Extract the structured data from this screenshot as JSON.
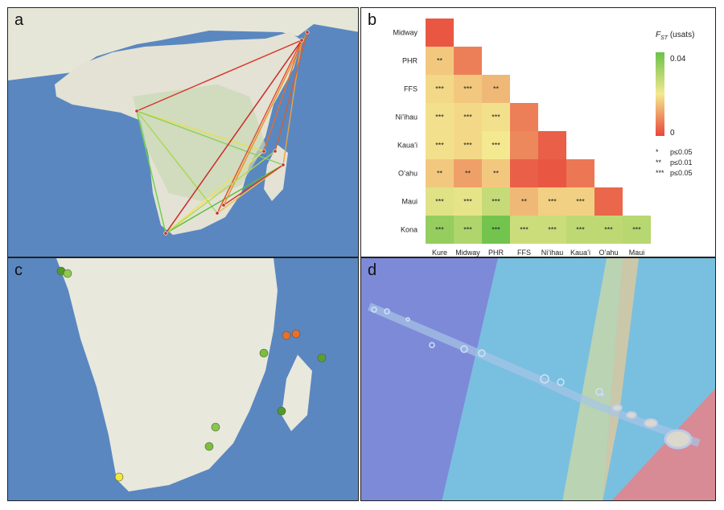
{
  "panels": {
    "a": "a",
    "b": "b",
    "c": "c",
    "d": "d"
  },
  "legend": {
    "title_main": "F",
    "title_sub": "ST",
    "title_rest": " (usats)",
    "max_label": "0.04",
    "min_label": "0",
    "sig": [
      {
        "stars": "*",
        "text": "p≤0.05"
      },
      {
        "stars": "**",
        "text": "p≤0.01"
      },
      {
        "stars": "***",
        "text": "p≤0.05"
      }
    ]
  },
  "colors": {
    "low": "#e8473a",
    "mid": "#f4e890",
    "high": "#6cc24a"
  },
  "chart_data": {
    "type": "heatmap",
    "row_labels": [
      "Midway",
      "PHR",
      "FFS",
      "Ni’ihau",
      "Kaua’i",
      "O’ahu",
      "Maui",
      "Kona"
    ],
    "col_labels": [
      "Kure",
      "Midway",
      "PHR",
      "FFS",
      "Ni’ihau",
      "Kaua’i",
      "O’ahu",
      "Maui"
    ],
    "scale": [
      0,
      0.04
    ],
    "values": [
      [
        0.002
      ],
      [
        0.016,
        0.007
      ],
      [
        0.018,
        0.016,
        0.014
      ],
      [
        0.019,
        0.018,
        0.019,
        0.007
      ],
      [
        0.019,
        0.018,
        0.02,
        0.008,
        0.003
      ],
      [
        0.016,
        0.011,
        0.016,
        0.003,
        0.002,
        0.006
      ],
      [
        0.023,
        0.022,
        0.027,
        0.014,
        0.017,
        0.017,
        0.004
      ],
      [
        0.034,
        0.03,
        0.039,
        0.026,
        0.026,
        0.028,
        0.028,
        0.029
      ]
    ],
    "stars": [
      [
        ""
      ],
      [
        "**",
        ""
      ],
      [
        "***",
        "***",
        "**"
      ],
      [
        "***",
        "***",
        "***",
        ""
      ],
      [
        "***",
        "***",
        "***",
        "",
        ""
      ],
      [
        "**",
        "**",
        "**",
        "",
        "",
        ""
      ],
      [
        "***",
        "***",
        "***",
        "**",
        "***",
        "***",
        ""
      ],
      [
        "***",
        "***",
        "***",
        "***",
        "***",
        "***",
        "***",
        "***"
      ]
    ]
  }
}
